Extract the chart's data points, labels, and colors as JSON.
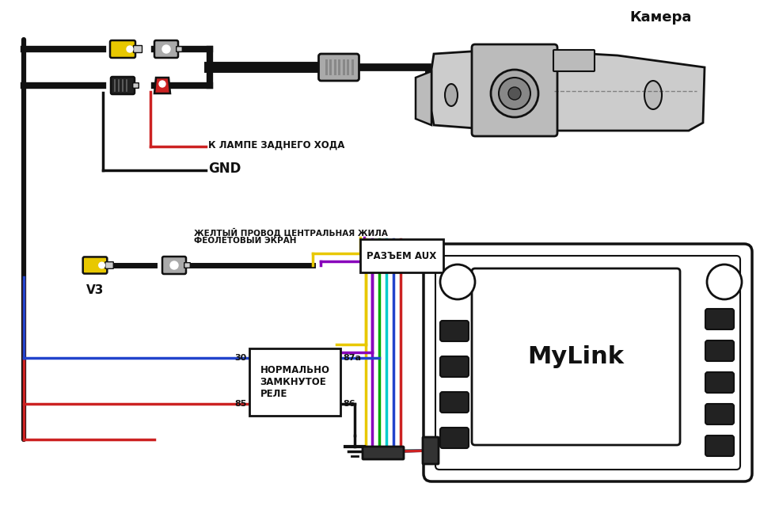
{
  "bg_color": "#ffffff",
  "text_camera": "Камера",
  "text_lamp": "К ЛАМПЕ ЗАДНЕГО ХОДА",
  "text_gnd": "GND",
  "text_v3": "V3",
  "text_yellow_wire": "ЖЕЛТЫЙ ПРОВОД ЦЕНТРАЛЬНАЯ ЖИЛА",
  "text_violet_screen": "ФЕОЛЕТОВЫЙ ЭКРАН",
  "text_aux": "РАЗЪЕМ AUX",
  "text_mylink": "MyLink",
  "text_relay": "НОРМАЛЬНО\nЗАМКНУТОЕ\nРЕЛЕ",
  "text_30": "30",
  "text_85": "85",
  "text_87a": "87а",
  "text_86": "86",
  "black": "#111111",
  "red": "#cc2222",
  "yellow": "#e8c800",
  "violet": "#8800bb",
  "blue": "#2244cc",
  "green": "#00aa00",
  "cyan": "#00cccc",
  "gray_light": "#cccccc",
  "gray_mid": "#aaaaaa",
  "gray_dark": "#777777"
}
